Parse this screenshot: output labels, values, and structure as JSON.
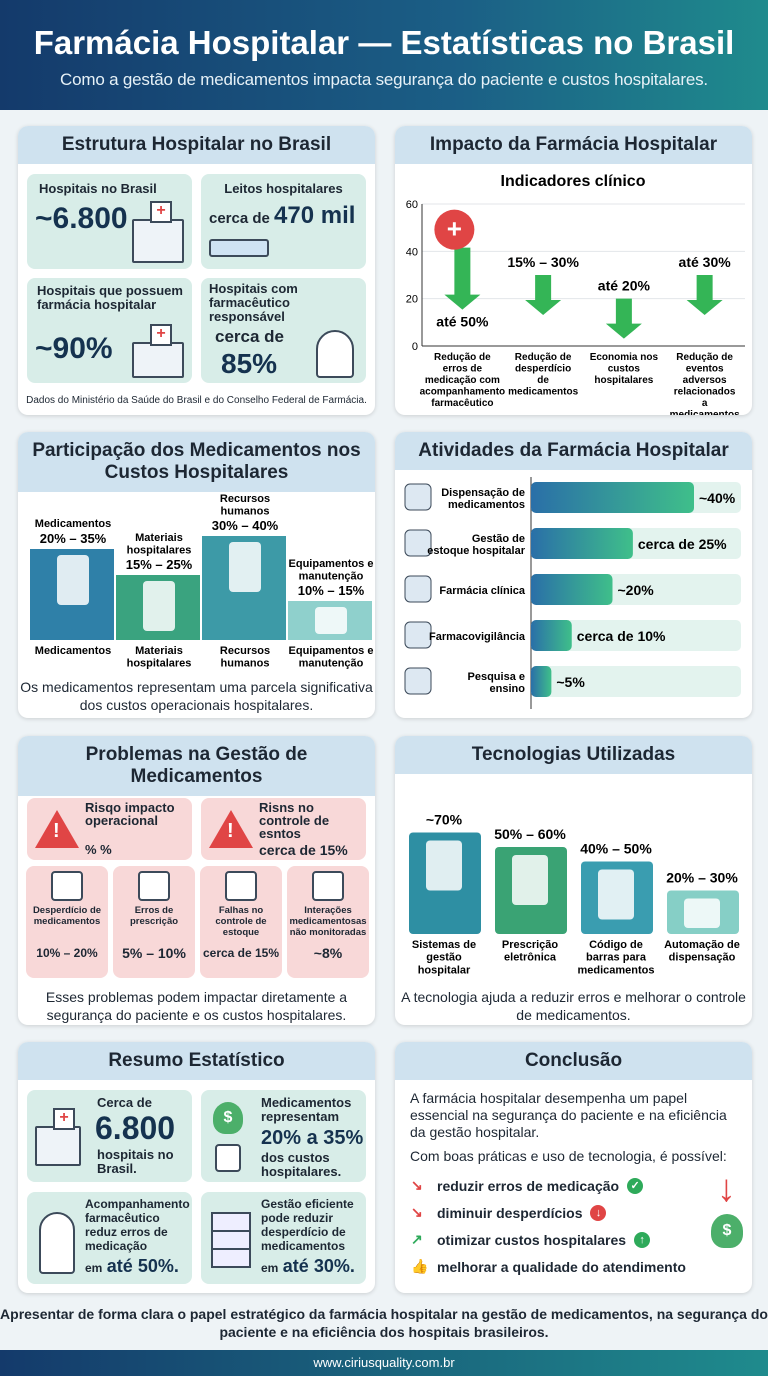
{
  "header": {
    "title": "Farmácia Hospitalar — Estatísticas no Brasil",
    "subtitle": "Como a gestão de medicamentos impacta segurança do paciente e custos hospitalares."
  },
  "estrutura": {
    "title": "Estrutura Hospitalar no Brasil",
    "cards": [
      {
        "label": "Hospitais no Brasil",
        "value": "~6.800",
        "icon": "hospital-icon"
      },
      {
        "label": "Leitos hospitalares",
        "prefix": "cerca de ",
        "value": "470 mil",
        "icon": "bed-icon"
      },
      {
        "label": "Hospitais que possuem farmácia hospitalar",
        "value": "~90%",
        "icon": "hospital-pharmacy-icon"
      },
      {
        "label": "Hospitais com farmacêutico responsável",
        "prefix": "cerca de",
        "value": "85%",
        "icon": "pharmacist-icon"
      }
    ],
    "source": "Dados do Ministério da Saúde do Brasil e do Conselho Federal de Farmácia."
  },
  "impacto": {
    "title": "Impacto da Farmácia Hospitalar",
    "chart_data": {
      "type": "bar",
      "title": "Indicadores clínico",
      "ylim": [
        0,
        60
      ],
      "yticks": [
        0,
        20,
        40,
        60
      ],
      "categories": [
        "Redução de erros de medicação com acompanhamento farmacêutico",
        "Redução de desperdício de medicamentos",
        "Economia nos custos hospitalares",
        "Redução de eventos adversos relacionados a medicamentos"
      ],
      "values": [
        50,
        30,
        20,
        30
      ],
      "labels": [
        "até 50%",
        "15% – 30%",
        "até 20%",
        "até 30%"
      ],
      "color": "#34b556"
    }
  },
  "custos": {
    "title": "Participação dos Medicamentos nos Custos Hospitalares",
    "chart_data": {
      "type": "bar",
      "categories": [
        "Medicamentos",
        "Materiais hospitalares",
        "Recursos humanos",
        "Equipamentos e manutenção"
      ],
      "top_labels": [
        "Medicamentos",
        "Materiais hospitalares",
        "Recursos humanos",
        "Equipamentos e manutenção"
      ],
      "ranges": [
        "20% – 35%",
        "15% – 25%",
        "30% – 40%",
        "10% – 15%"
      ],
      "values": [
        35,
        25,
        40,
        15
      ],
      "colors": [
        "#2f80a8",
        "#3aa37f",
        "#3d9aa7",
        "#8fd0cc"
      ]
    },
    "note": "Os medicamentos representam uma parcela significativa dos custos operacionais hospitalares."
  },
  "atividades": {
    "title": "Atividades da Farmácia Hospitalar",
    "chart_data": {
      "type": "bar",
      "orientation": "horizontal",
      "categories": [
        "Dispensação de medicamentos",
        "Gestão de estoque hospitalar",
        "Farmácia clínica",
        "Farmacovigilância",
        "Pesquisa e ensino"
      ],
      "values": [
        40,
        25,
        20,
        10,
        5
      ],
      "labels": [
        "~40%",
        "cerca de 25%",
        "~20%",
        "cerca de 10%",
        "~5%"
      ],
      "colors": [
        "#2a6fa8",
        "#3fbf8a"
      ]
    }
  },
  "problemas": {
    "title": "Problemas na Gestão de Medicamentos",
    "alerts": [
      {
        "title": "Risqo impacto operacional",
        "value": "% %"
      },
      {
        "title": "Risns no controle de esntos",
        "value": "cerca de 15%"
      }
    ],
    "items": [
      {
        "label": "Desperdício de medicamentos",
        "value": "10% – 20%",
        "icon": "trash-pills-icon"
      },
      {
        "label": "Erros de prescrição",
        "value": "5% – 10%",
        "icon": "prescription-error-icon"
      },
      {
        "label": "Falhas no controle de estoque",
        "value": "cerca de 15%",
        "icon": "empty-shelf-icon"
      },
      {
        "label": "Interações medicamentosas não monitoradas",
        "value": "~8%",
        "icon": "pill-interaction-icon"
      }
    ],
    "note": "Esses problemas podem impactar diretamente a segurança do paciente e os custos hospitalares."
  },
  "tecnologias": {
    "title": "Tecnologias Utilizadas",
    "chart_data": {
      "type": "bar",
      "categories": [
        "Sistemas de gestão hospitalar",
        "Prescrição eletrônica",
        "Código de barras para medicamentos",
        "Automação de dispensação"
      ],
      "labels": [
        "~70%",
        "50% – 60%",
        "40% – 50%",
        "20% – 30%"
      ],
      "values": [
        70,
        60,
        50,
        30
      ],
      "colors": [
        "#2e8fa3",
        "#3aa374",
        "#3a9db0",
        "#86cfc6"
      ]
    },
    "note": "A tecnologia ajuda a reduzir erros e melhorar o controle de medicamentos."
  },
  "resumo": {
    "title": "Resumo Estatístico",
    "cards": [
      {
        "pre": "Cerca de",
        "big": "6.800",
        "post": "hospitais no Brasil."
      },
      {
        "pre": "Medicamentos representam",
        "big": "20% a 35%",
        "post": "dos custos hospitalares."
      },
      {
        "pre": "Acompanhamento farmacêutico reduz erros de medicação",
        "em": "em",
        "big": "até 50%."
      },
      {
        "pre": "Gestão eficiente pode reduzir desperdício de medicamentos",
        "em": "em",
        "big": "até 30%."
      }
    ]
  },
  "conclusao": {
    "title": "Conclusão",
    "p1": "A farmácia hospitalar desempenha um papel essencial na segurança do paciente e na eficiência da gestão hospitalar.",
    "p2": "Com boas práticas e uso de tecnologia, é possível:",
    "items": [
      {
        "text": "reduzir erros de medicação",
        "badge": "✓",
        "color": "#2eaa5a"
      },
      {
        "text": "diminuir desperdícios",
        "badge": "↓",
        "color": "#e04545"
      },
      {
        "text": "otimizar custos hospitalares",
        "badge": "↑",
        "color": "#2eaa5a"
      },
      {
        "text": "melhorar a qualidade do atendimento",
        "badge": "",
        "color": ""
      }
    ]
  },
  "footer": {
    "statement": "Apresentar de forma clara o papel estratégico da farmácia hospitalar na gestão de medicamentos, na segurança do paciente e na eficiência dos hospitais brasileiros.",
    "url": "www.ciriusquality.com.br"
  }
}
